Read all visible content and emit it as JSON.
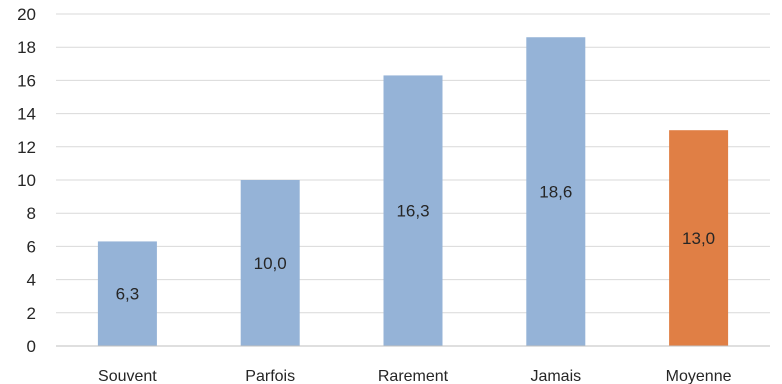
{
  "chart_data": {
    "type": "bar",
    "categories": [
      "Souvent",
      "Parfois",
      "Rarement",
      "Jamais",
      "Moyenne"
    ],
    "values": [
      6.3,
      10.0,
      16.3,
      18.6,
      13.0
    ],
    "data_labels": [
      "6,3",
      "10,0",
      "16,3",
      "18,6",
      "13,0"
    ],
    "bar_colors": [
      "#95b3d7",
      "#95b3d7",
      "#95b3d7",
      "#95b3d7",
      "#e07f45"
    ],
    "ylim": [
      0,
      20
    ],
    "y_ticks": [
      0,
      2,
      4,
      6,
      8,
      10,
      12,
      14,
      16,
      18,
      20
    ],
    "grid": true,
    "legend": "none",
    "title": "",
    "xlabel": "",
    "ylabel": ""
  }
}
